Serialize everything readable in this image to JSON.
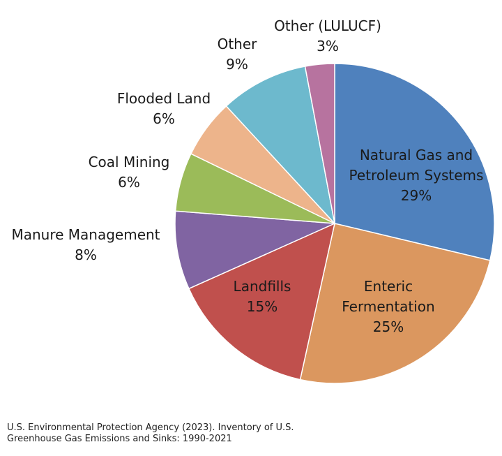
{
  "chart_data": {
    "type": "pie",
    "start": "top",
    "direction": "clockwise",
    "slices": [
      {
        "label": [
          "Natural Gas and",
          "Petroleum Systems"
        ],
        "value": 29,
        "value_label": "29%",
        "color": "#4F81BD"
      },
      {
        "label": [
          "Enteric",
          "Fermentation"
        ],
        "value": 25,
        "value_label": "25%",
        "color": "#DB975F"
      },
      {
        "label": [
          "Landfills"
        ],
        "value": 15,
        "value_label": "15%",
        "color": "#C0504D"
      },
      {
        "label": [
          "Manure Management"
        ],
        "value": 8,
        "value_label": "8%",
        "color": "#8064A2"
      },
      {
        "label": [
          "Coal Mining"
        ],
        "value": 6,
        "value_label": "6%",
        "color": "#9BBB59"
      },
      {
        "label": [
          "Flooded Land"
        ],
        "value": 6,
        "value_label": "6%",
        "color": "#EDB48B"
      },
      {
        "label": [
          "Other"
        ],
        "value": 9,
        "value_label": "9%",
        "color": "#6DB9CD"
      },
      {
        "label": [
          "Other (LULUCF)"
        ],
        "value": 3,
        "value_label": "3%",
        "color": "#B7739F"
      }
    ]
  },
  "source": {
    "line1": "U.S. Environmental Protection Agency (2023). Inventory of U.S.",
    "line2": "Greenhouse Gas Emissions and Sinks: 1990-2021"
  }
}
